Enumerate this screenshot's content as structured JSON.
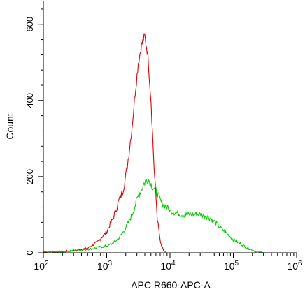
{
  "chart_data": {
    "type": "area",
    "title": "",
    "xlabel": "APC R660-APC-A",
    "ylabel": "Count",
    "x_scale": "log",
    "xlim": [
      100,
      1000000
    ],
    "ylim": [
      0,
      660
    ],
    "grid": false,
    "legend": "none",
    "x_ticks": [
      {
        "value": 100,
        "base": "10",
        "exp": "2"
      },
      {
        "value": 1000,
        "base": "10",
        "exp": "3"
      },
      {
        "value": 10000,
        "base": "10",
        "exp": "4"
      },
      {
        "value": 100000,
        "base": "10",
        "exp": "5"
      },
      {
        "value": 1000000,
        "base": "10",
        "exp": "6"
      }
    ],
    "y_ticks": [
      {
        "value": 0,
        "label": "0"
      },
      {
        "value": 200,
        "label": "200"
      },
      {
        "value": 400,
        "label": "400"
      },
      {
        "value": 600,
        "label": "600"
      }
    ],
    "series": [
      {
        "color": "#e00000",
        "points": [
          [
            100,
            2
          ],
          [
            180,
            3
          ],
          [
            316,
            6
          ],
          [
            500,
            12
          ],
          [
            708,
            28
          ],
          [
            1000,
            55
          ],
          [
            1259,
            90
          ],
          [
            1585,
            140
          ],
          [
            1778,
            160
          ],
          [
            2000,
            200
          ],
          [
            2239,
            260
          ],
          [
            2512,
            330
          ],
          [
            2818,
            420
          ],
          [
            3162,
            500
          ],
          [
            3548,
            545
          ],
          [
            3981,
            570
          ],
          [
            4467,
            520
          ],
          [
            5012,
            400
          ],
          [
            5623,
            220
          ],
          [
            6310,
            90
          ],
          [
            7079,
            25
          ],
          [
            7943,
            5
          ],
          [
            8913,
            0
          ],
          [
            15000,
            0
          ],
          [
            1000000,
            0
          ]
        ]
      },
      {
        "color": "#00cc00",
        "points": [
          [
            100,
            2
          ],
          [
            200,
            3
          ],
          [
            400,
            7
          ],
          [
            631,
            12
          ],
          [
            1000,
            18
          ],
          [
            1259,
            25
          ],
          [
            1585,
            40
          ],
          [
            2000,
            65
          ],
          [
            2512,
            100
          ],
          [
            3162,
            150
          ],
          [
            3981,
            185
          ],
          [
            4467,
            195
          ],
          [
            5012,
            180
          ],
          [
            5623,
            170
          ],
          [
            6310,
            155
          ],
          [
            7079,
            135
          ],
          [
            8913,
            120
          ],
          [
            10000,
            110
          ],
          [
            12589,
            105
          ],
          [
            15849,
            100
          ],
          [
            19953,
            100
          ],
          [
            25119,
            102
          ],
          [
            31623,
            100
          ],
          [
            39811,
            95
          ],
          [
            50119,
            82
          ],
          [
            63096,
            65
          ],
          [
            79433,
            50
          ],
          [
            100000,
            35
          ],
          [
            125893,
            25
          ],
          [
            158489,
            15
          ],
          [
            199526,
            7
          ],
          [
            251189,
            2
          ],
          [
            316228,
            0
          ],
          [
            1000000,
            0
          ]
        ]
      }
    ]
  }
}
